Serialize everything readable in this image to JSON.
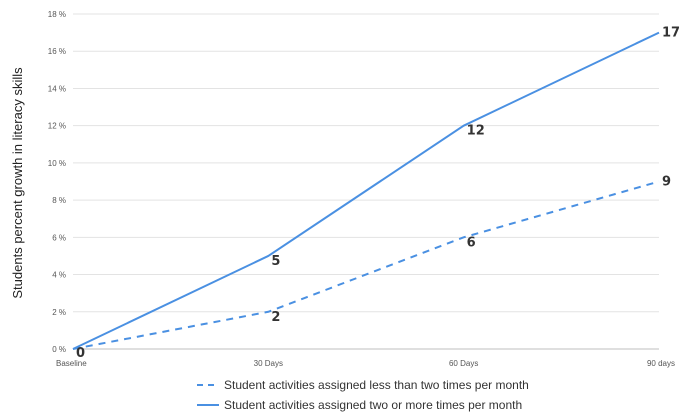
{
  "chart_data": {
    "type": "line",
    "categories": [
      "Baseline",
      "30 Days",
      "60 Days",
      "90 days"
    ],
    "series": [
      {
        "name": "Student activities assigned less than two times per month",
        "values": [
          0,
          2,
          6,
          9
        ],
        "labels": [
          "0",
          "2",
          "6",
          "9"
        ],
        "style": "dashed",
        "color": "#4A90E2"
      },
      {
        "name": "Student activities assigned two or more times per month",
        "values": [
          0,
          5,
          12,
          17
        ],
        "labels": [
          "0",
          "5",
          "12",
          "17"
        ],
        "style": "solid",
        "color": "#4A90E2"
      }
    ],
    "ylabel": "Students percent growth in literacy skills",
    "ylim": [
      0,
      18
    ],
    "yticks": [
      "0 %",
      "2 %",
      "4 %",
      "6 %",
      "8 %",
      "10 %",
      "12 %",
      "14 %",
      "16 %",
      "18 %"
    ],
    "grid": true,
    "legend_position": "bottom"
  }
}
